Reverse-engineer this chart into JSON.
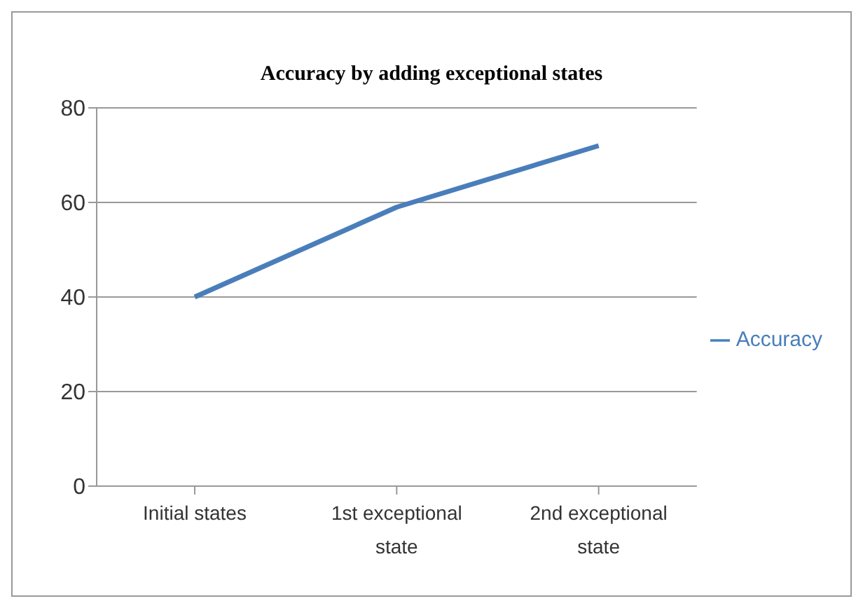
{
  "chart_data": {
    "type": "line",
    "title": "Accuracy by adding exceptional states",
    "categories": [
      "Initial states",
      "1st exceptional state",
      "2nd exceptional state"
    ],
    "series": [
      {
        "name": "Accuracy",
        "color": "#4a7ebb",
        "values": [
          40,
          59,
          72
        ]
      }
    ],
    "ylim": [
      0,
      80
    ],
    "yticks": [
      0,
      20,
      40,
      60,
      80
    ],
    "grid": "y",
    "legend": "right",
    "marker": "none",
    "line_style": "solid"
  }
}
